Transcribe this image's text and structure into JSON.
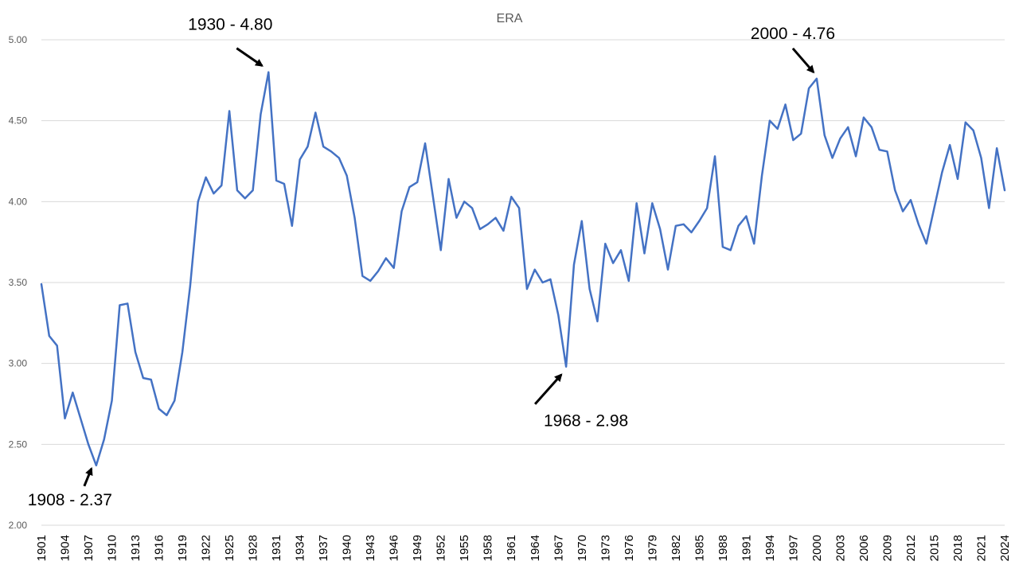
{
  "chart_data": {
    "type": "line",
    "title": "ERA",
    "xlabel": "",
    "ylabel": "",
    "ylim": [
      2.0,
      5.0
    ],
    "yticks": [
      "2.00",
      "2.50",
      "3.00",
      "3.50",
      "4.00",
      "4.50",
      "5.00"
    ],
    "xtick_labels": [
      "1901",
      "1904",
      "1907",
      "1910",
      "1913",
      "1916",
      "1919",
      "1922",
      "1925",
      "1928",
      "1931",
      "1934",
      "1937",
      "1940",
      "1943",
      "1946",
      "1949",
      "1952",
      "1955",
      "1958",
      "1961",
      "1964",
      "1967",
      "1970",
      "1973",
      "1976",
      "1979",
      "1982",
      "1985",
      "1988",
      "1991",
      "1994",
      "1997",
      "2000",
      "2003",
      "2006",
      "2009",
      "2012",
      "2015",
      "2018",
      "2021",
      "2024"
    ],
    "grid": true,
    "color": "#4472c4",
    "x": [
      1901,
      1902,
      1903,
      1904,
      1905,
      1906,
      1907,
      1908,
      1909,
      1910,
      1911,
      1912,
      1913,
      1914,
      1915,
      1916,
      1917,
      1918,
      1919,
      1920,
      1921,
      1922,
      1923,
      1924,
      1925,
      1926,
      1927,
      1928,
      1929,
      1930,
      1931,
      1932,
      1933,
      1934,
      1935,
      1936,
      1937,
      1938,
      1939,
      1940,
      1941,
      1942,
      1943,
      1944,
      1945,
      1946,
      1947,
      1948,
      1949,
      1950,
      1951,
      1952,
      1953,
      1954,
      1955,
      1956,
      1957,
      1958,
      1959,
      1960,
      1961,
      1962,
      1963,
      1964,
      1965,
      1966,
      1967,
      1968,
      1969,
      1970,
      1971,
      1972,
      1973,
      1974,
      1975,
      1976,
      1977,
      1978,
      1979,
      1980,
      1981,
      1982,
      1983,
      1984,
      1985,
      1986,
      1987,
      1988,
      1989,
      1990,
      1991,
      1992,
      1993,
      1994,
      1995,
      1996,
      1997,
      1998,
      1999,
      2000,
      2001,
      2002,
      2003,
      2004,
      2005,
      2006,
      2007,
      2008,
      2009,
      2010,
      2011,
      2012,
      2013,
      2014,
      2015,
      2016,
      2017,
      2018,
      2019,
      2020,
      2021,
      2022,
      2023,
      2024
    ],
    "values": [
      3.49,
      3.17,
      3.11,
      2.66,
      2.82,
      2.66,
      2.5,
      2.37,
      2.53,
      2.77,
      3.36,
      3.37,
      3.07,
      2.91,
      2.9,
      2.72,
      2.68,
      2.77,
      3.07,
      3.48,
      4.0,
      4.15,
      4.05,
      4.1,
      4.56,
      4.07,
      4.02,
      4.07,
      4.54,
      4.8,
      4.13,
      4.11,
      3.85,
      4.26,
      4.34,
      4.55,
      4.34,
      4.31,
      4.27,
      4.16,
      3.9,
      3.54,
      3.51,
      3.57,
      3.65,
      3.59,
      3.94,
      4.09,
      4.12,
      4.36,
      4.03,
      3.7,
      4.14,
      3.9,
      4.0,
      3.96,
      3.83,
      3.86,
      3.9,
      3.82,
      4.03,
      3.96,
      3.46,
      3.58,
      3.5,
      3.52,
      3.3,
      2.98,
      3.61,
      3.88,
      3.46,
      3.26,
      3.74,
      3.62,
      3.7,
      3.51,
      3.99,
      3.68,
      3.99,
      3.83,
      3.58,
      3.85,
      3.86,
      3.81,
      3.88,
      3.96,
      4.28,
      3.72,
      3.7,
      3.85,
      3.91,
      3.74,
      4.16,
      4.5,
      4.45,
      4.6,
      4.38,
      4.42,
      4.7,
      4.76,
      4.41,
      4.27,
      4.39,
      4.46,
      4.28,
      4.52,
      4.46,
      4.32,
      4.31,
      4.07,
      3.94,
      4.01,
      3.86,
      3.74,
      3.96,
      4.18,
      4.35,
      4.14,
      4.49,
      4.44,
      4.27,
      3.96,
      4.33,
      4.07
    ],
    "annotations": [
      {
        "text": "1930 - 4.80",
        "x": 1930,
        "y": 4.8
      },
      {
        "text": "2000 - 4.76",
        "x": 2000,
        "y": 4.76
      },
      {
        "text": "1908 - 2.37",
        "x": 1908,
        "y": 2.37
      },
      {
        "text": "1968 - 2.98",
        "x": 1968,
        "y": 2.98
      }
    ]
  }
}
